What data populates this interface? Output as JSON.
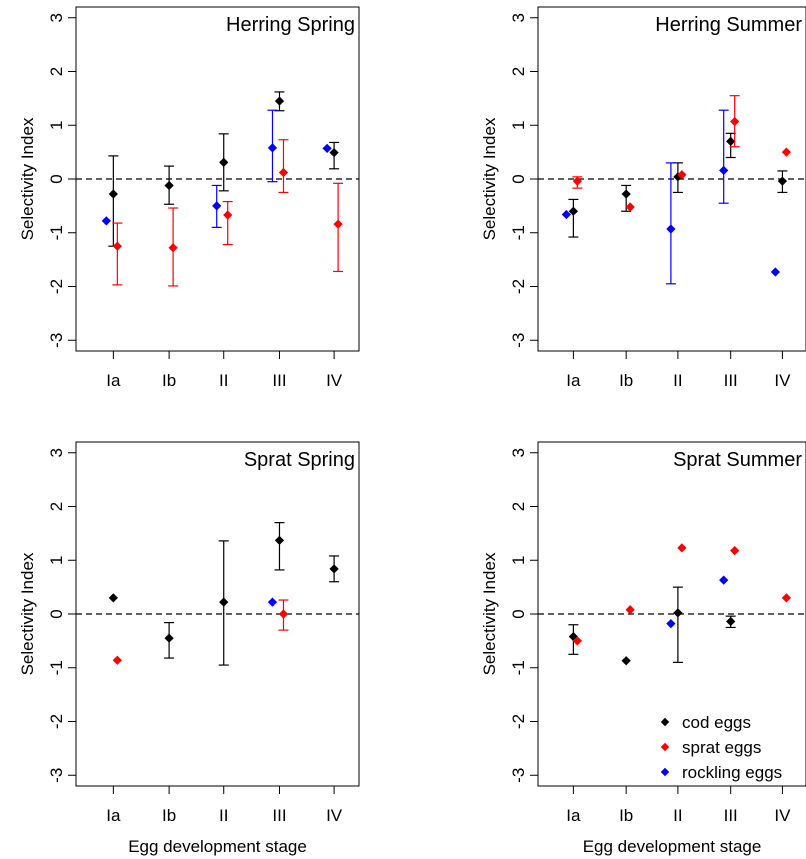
{
  "colors": {
    "cod": "#000000",
    "sprat": "#ff0000",
    "rockling": "#0000ff"
  },
  "chart_data": [
    {
      "type": "scatter",
      "title": "Herring Spring",
      "xlabel": "",
      "ylabel": "Selectivity Index",
      "categories": [
        "Ia",
        "Ib",
        "II",
        "III",
        "IV"
      ],
      "yticks": [
        "-3",
        "-2",
        "-1",
        "0",
        "1",
        "2",
        "3"
      ],
      "ylim": [
        -3.2,
        3.2
      ],
      "reference_line": 0,
      "series": [
        {
          "name": "cod eggs",
          "key": "cod",
          "points": [
            {
              "x": "Ia",
              "y": -0.28,
              "lo": -1.25,
              "hi": 0.43
            },
            {
              "x": "Ib",
              "y": -0.12,
              "lo": -0.47,
              "hi": 0.24
            },
            {
              "x": "II",
              "y": 0.31,
              "lo": -0.22,
              "hi": 0.84
            },
            {
              "x": "III",
              "y": 1.45,
              "lo": 1.27,
              "hi": 1.62
            },
            {
              "x": "IV",
              "y": 0.49,
              "lo": 0.19,
              "hi": 0.68
            }
          ]
        },
        {
          "name": "sprat eggs",
          "key": "sprat",
          "points": [
            {
              "x": "Ia",
              "y": -1.25,
              "lo": -1.97,
              "hi": -0.82
            },
            {
              "x": "Ib",
              "y": -1.28,
              "lo": -1.99,
              "hi": -0.54
            },
            {
              "x": "II",
              "y": -0.67,
              "lo": -1.22,
              "hi": -0.42
            },
            {
              "x": "III",
              "y": 0.12,
              "lo": -0.25,
              "hi": 0.73
            },
            {
              "x": "IV",
              "y": -0.84,
              "lo": -1.72,
              "hi": -0.08
            }
          ]
        },
        {
          "name": "rockling eggs",
          "key": "rockling",
          "points": [
            {
              "x": "Ia",
              "y": -0.78
            },
            {
              "x": "II",
              "y": -0.5,
              "lo": -0.9,
              "hi": -0.12
            },
            {
              "x": "III",
              "y": 0.58,
              "lo": -0.05,
              "hi": 1.28
            },
            {
              "x": "IV",
              "y": 0.57
            }
          ]
        }
      ]
    },
    {
      "type": "scatter",
      "title": "Herring Summer",
      "xlabel": "",
      "ylabel": "Selectivity Index",
      "categories": [
        "Ia",
        "Ib",
        "II",
        "III",
        "IV"
      ],
      "yticks": [
        "-3",
        "-2",
        "-1",
        "0",
        "1",
        "2",
        "3"
      ],
      "ylim": [
        -3.2,
        3.2
      ],
      "reference_line": 0,
      "series": [
        {
          "name": "cod eggs",
          "key": "cod",
          "points": [
            {
              "x": "Ia",
              "y": -0.6,
              "lo": -1.08,
              "hi": -0.38
            },
            {
              "x": "Ib",
              "y": -0.28,
              "lo": -0.6,
              "hi": -0.12
            },
            {
              "x": "II",
              "y": 0.04,
              "lo": -0.25,
              "hi": 0.3
            },
            {
              "x": "III",
              "y": 0.7,
              "lo": 0.4,
              "hi": 0.85
            },
            {
              "x": "IV",
              "y": -0.04,
              "lo": -0.25,
              "hi": 0.15
            }
          ]
        },
        {
          "name": "sprat eggs",
          "key": "sprat",
          "points": [
            {
              "x": "Ia",
              "y": -0.04,
              "lo": -0.17,
              "hi": 0.04
            },
            {
              "x": "Ib",
              "y": -0.52
            },
            {
              "x": "II",
              "y": 0.08
            },
            {
              "x": "III",
              "y": 1.07,
              "lo": 0.6,
              "hi": 1.55
            },
            {
              "x": "IV",
              "y": 0.5
            }
          ]
        },
        {
          "name": "rockling eggs",
          "key": "rockling",
          "points": [
            {
              "x": "Ia",
              "y": -0.66
            },
            {
              "x": "II",
              "y": -0.93,
              "lo": -1.95,
              "hi": 0.3
            },
            {
              "x": "III",
              "y": 0.16,
              "lo": -0.45,
              "hi": 1.28
            },
            {
              "x": "IV",
              "y": -1.73
            }
          ]
        }
      ]
    },
    {
      "type": "scatter",
      "title": "Sprat Spring",
      "xlabel": "Egg development stage",
      "ylabel": "Selectivity Index",
      "categories": [
        "Ia",
        "Ib",
        "II",
        "III",
        "IV"
      ],
      "yticks": [
        "-3",
        "-2",
        "-1",
        "0",
        "1",
        "2",
        "3"
      ],
      "ylim": [
        -3.2,
        3.2
      ],
      "reference_line": 0,
      "series": [
        {
          "name": "cod eggs",
          "key": "cod",
          "points": [
            {
              "x": "Ia",
              "y": 0.3
            },
            {
              "x": "Ib",
              "y": -0.45,
              "lo": -0.82,
              "hi": -0.16
            },
            {
              "x": "II",
              "y": 0.22,
              "lo": -0.95,
              "hi": 1.36
            },
            {
              "x": "III",
              "y": 1.37,
              "lo": 0.82,
              "hi": 1.7
            },
            {
              "x": "IV",
              "y": 0.84,
              "lo": 0.6,
              "hi": 1.08
            }
          ]
        },
        {
          "name": "sprat eggs",
          "key": "sprat",
          "points": [
            {
              "x": "Ia",
              "y": -0.86
            },
            {
              "x": "III",
              "y": 0.0,
              "lo": -0.3,
              "hi": 0.26
            }
          ]
        },
        {
          "name": "rockling eggs",
          "key": "rockling",
          "points": [
            {
              "x": "III",
              "y": 0.22
            }
          ]
        }
      ]
    },
    {
      "type": "scatter",
      "title": "Sprat Summer",
      "xlabel": "Egg development stage",
      "ylabel": "Selectivity Index",
      "categories": [
        "Ia",
        "Ib",
        "II",
        "III",
        "IV"
      ],
      "yticks": [
        "-3",
        "-2",
        "-1",
        "0",
        "1",
        "2",
        "3"
      ],
      "ylim": [
        -3.2,
        3.2
      ],
      "reference_line": 0,
      "legend": {
        "placement": "bottom-right",
        "entries": [
          "cod eggs",
          "sprat eggs",
          "rockling eggs"
        ]
      },
      "series": [
        {
          "name": "cod eggs",
          "key": "cod",
          "points": [
            {
              "x": "Ia",
              "y": -0.42,
              "lo": -0.75,
              "hi": -0.2
            },
            {
              "x": "Ib",
              "y": -0.87
            },
            {
              "x": "II",
              "y": 0.02,
              "lo": -0.9,
              "hi": 0.5
            },
            {
              "x": "III",
              "y": -0.14,
              "lo": -0.25,
              "hi": -0.04
            }
          ]
        },
        {
          "name": "sprat eggs",
          "key": "sprat",
          "points": [
            {
              "x": "Ia",
              "y": -0.5
            },
            {
              "x": "Ib",
              "y": 0.08
            },
            {
              "x": "II",
              "y": 1.23
            },
            {
              "x": "III",
              "y": 1.18
            },
            {
              "x": "IV",
              "y": 0.3
            }
          ]
        },
        {
          "name": "rockling eggs",
          "key": "rockling",
          "points": [
            {
              "x": "II",
              "y": -0.18
            },
            {
              "x": "III",
              "y": 0.63
            }
          ]
        }
      ]
    }
  ]
}
